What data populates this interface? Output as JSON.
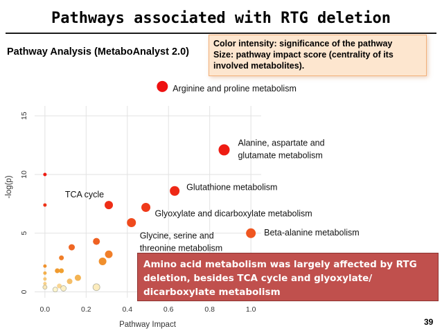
{
  "slide": {
    "title": "Pathways associated with RTG deletion",
    "subtitle": "Pathway Analysis (MetaboAnalyst 2.0)",
    "legend_lines": [
      "Color intensity: significance of the pathway",
      "Size: pathway impact score (centrality of its",
      "involved metabolites)."
    ],
    "callout": "Amino acid metabolism was largely affected by RTG deletion, besides TCA cycle and glyoxylate/ dicarboxylate metabolism",
    "page_number": "39"
  },
  "chart_data": {
    "type": "scatter",
    "xlabel": "Pathway Impact",
    "ylabel": "-log(p)",
    "xlim": [
      -0.05,
      1.05
    ],
    "ylim": [
      -0.5,
      18.2
    ],
    "x_ticks": [
      "0.0",
      "0.2",
      "0.4",
      "0.6",
      "0.8",
      "1.0"
    ],
    "y_ticks": [
      "0",
      "5",
      "10",
      "15"
    ],
    "grid": true,
    "color_scale": {
      "low": "#ffffe0",
      "mid": "#f0a030",
      "high": "#ee1111"
    },
    "points": [
      {
        "x": 0.57,
        "y": 17.5,
        "sig": 1.0,
        "size": 8,
        "label": [
          "Arginine and proline metabolism"
        ]
      },
      {
        "x": 0.87,
        "y": 12.1,
        "sig": 0.96,
        "size": 8,
        "label": [
          "Alanine, aspartate and",
          "glutamate metabolism"
        ]
      },
      {
        "x": 0.63,
        "y": 8.6,
        "sig": 0.92,
        "size": 7,
        "label": [
          "Glutathione metabolism"
        ]
      },
      {
        "x": 0.31,
        "y": 7.4,
        "sig": 0.9,
        "size": 6,
        "label": [
          "TCA cycle"
        ]
      },
      {
        "x": 0.49,
        "y": 7.2,
        "sig": 0.86,
        "size": 6.5,
        "label": [
          "Glyoxylate and dicarboxylate metabolism"
        ]
      },
      {
        "x": 0.42,
        "y": 5.9,
        "sig": 0.8,
        "size": 6.5,
        "label": [
          "Glycine, serine and",
          "threonine metabolism"
        ]
      },
      {
        "x": 1.0,
        "y": 5.0,
        "sig": 0.76,
        "size": 7,
        "label": [
          "Beta-alanine metabolism"
        ]
      },
      {
        "x": 0.0,
        "y": 10.0,
        "sig": 0.96,
        "size": 2.5,
        "label": []
      },
      {
        "x": 0.0,
        "y": 7.4,
        "sig": 0.88,
        "size": 2.5,
        "label": []
      },
      {
        "x": 0.25,
        "y": 4.3,
        "sig": 0.72,
        "size": 5,
        "label": []
      },
      {
        "x": 0.13,
        "y": 3.8,
        "sig": 0.7,
        "size": 4.5,
        "label": []
      },
      {
        "x": 0.31,
        "y": 3.2,
        "sig": 0.62,
        "size": 5.5,
        "label": []
      },
      {
        "x": 0.28,
        "y": 2.6,
        "sig": 0.56,
        "size": 5.5,
        "label": []
      },
      {
        "x": 0.08,
        "y": 2.9,
        "sig": 0.62,
        "size": 3.5,
        "label": []
      },
      {
        "x": 0.0,
        "y": 2.2,
        "sig": 0.55,
        "size": 2.5,
        "label": []
      },
      {
        "x": 0.06,
        "y": 1.8,
        "sig": 0.52,
        "size": 3.5,
        "label": []
      },
      {
        "x": 0.08,
        "y": 1.8,
        "sig": 0.5,
        "size": 3.5,
        "label": []
      },
      {
        "x": 0.16,
        "y": 1.2,
        "sig": 0.4,
        "size": 4.5,
        "label": []
      },
      {
        "x": 0.12,
        "y": 0.9,
        "sig": 0.34,
        "size": 4,
        "label": []
      },
      {
        "x": 0.0,
        "y": 1.6,
        "sig": 0.42,
        "size": 2.5,
        "label": []
      },
      {
        "x": 0.0,
        "y": 1.1,
        "sig": 0.3,
        "size": 2.5,
        "label": []
      },
      {
        "x": 0.0,
        "y": 0.7,
        "sig": 0.25,
        "size": 2.5,
        "label": []
      },
      {
        "x": 0.07,
        "y": 0.5,
        "sig": 0.22,
        "size": 3.5,
        "label": []
      },
      {
        "x": 0.0,
        "y": 0.4,
        "sig": 0.12,
        "size": 3,
        "label": []
      },
      {
        "x": 0.09,
        "y": 0.3,
        "sig": 0.08,
        "size": 4,
        "label": []
      },
      {
        "x": 0.25,
        "y": 0.4,
        "sig": 0.1,
        "size": 5,
        "label": []
      },
      {
        "x": 0.05,
        "y": 0.2,
        "sig": 0.05,
        "size": 3.5,
        "label": []
      }
    ]
  }
}
